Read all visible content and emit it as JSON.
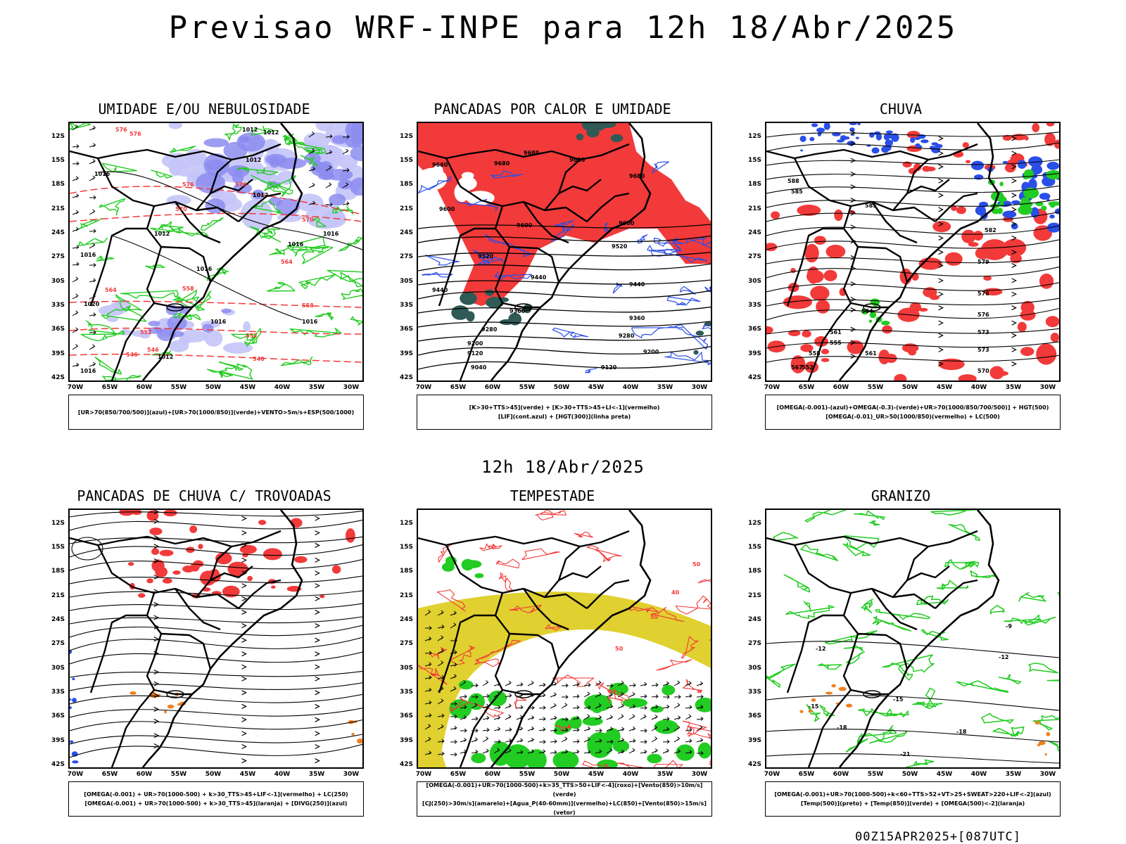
{
  "header": {
    "title": "Previsao WRF-INPE  para 12h 18/Abr/2025",
    "subtitle": "12h 18/Abr/2025",
    "footer": "00Z15APR2025+[087UTC]"
  },
  "axes": {
    "lat_labels": [
      "12S",
      "15S",
      "18S",
      "21S",
      "24S",
      "27S",
      "30S",
      "33S",
      "36S",
      "39S",
      "42S"
    ],
    "lon_labels": [
      "70W",
      "65W",
      "60W",
      "55W",
      "50W",
      "45W",
      "40W",
      "35W",
      "30W"
    ]
  },
  "colors": {
    "humid_blue": "#8c8cf0",
    "light_blue": "#c4c4f8",
    "green": "#22cc22",
    "red": "#f23a3a",
    "dark_teal": "#2f5a56",
    "contour_blue": "#2a4ee8",
    "yellow": "#e0d030",
    "orange": "#f08020"
  },
  "panels": [
    {
      "title": "UMIDADE E/OU NEBULOSIDADE",
      "legend": [
        "[UR>70(850/700/500)](azul)+[UR>70(1000/850)](verde)+VENTO>5m/s+ESP(500/1000)"
      ],
      "contour_labels": [
        "1012",
        "1012",
        "1012",
        "1012",
        "1016",
        "1012",
        "1016",
        "1016",
        "1016",
        "1016",
        "1016",
        "1016",
        "1012",
        "1016",
        "1020"
      ],
      "red_labels": [
        "576",
        "576",
        "576",
        "576",
        "570",
        "570",
        "564",
        "564",
        "558",
        "558",
        "552",
        "552",
        "546",
        "546",
        "540"
      ]
    },
    {
      "title": "PANCADAS POR CALOR E UMIDADE",
      "legend": [
        "[K>30+TTS>45](verde) + [K>30+TTS>45+LI<-1](vermelho)",
        "[LIF](cont.azul) + [HGT(300)](linha preta)"
      ],
      "contour_labels": [
        "9680",
        "9680",
        "9680",
        "9680",
        "9680",
        "9600",
        "9600",
        "9600",
        "9520",
        "9520",
        "9440",
        "9440",
        "9440",
        "9360",
        "9360",
        "9280",
        "9280",
        "9200",
        "9200",
        "9120",
        "9120",
        "9040"
      ]
    },
    {
      "title": "CHUVA",
      "legend": [
        "[OMEGA(-0.001)-(azul)+OMEGA(-0.3)-(verde)+UR>70(1000/850/700/500)] + HGT(500)",
        "[OMEGA(-0.01)_UR>50(1000/850)(vermelho) + LC(500)"
      ],
      "contour_labels": [
        "588",
        "585",
        "585",
        "582",
        "579",
        "576",
        "576",
        "573",
        "573",
        "570",
        "567",
        "564",
        "561",
        "561",
        "558",
        "555",
        "552"
      ]
    },
    {
      "title": "PANCADAS DE CHUVA C/ TROVOADAS",
      "legend": [
        "[OMEGA(-0.001) + UR>70(1000-500) + k>30_TTS>45+LIF<-1](vermelho) + LC(250)",
        "[OMEGA(-0.001) + UR>70(1000-500) + k>30_TTS>45](laranja) + [DIVG(250)](azul)"
      ]
    },
    {
      "title": "TEMPESTADE",
      "legend": [
        "[OMEGA(-0.001)+UR>70(1000-500)+k>35_TTS>50+LIF<-4](roxo)+[Vento(850)>10m/s](verde)",
        "[CJ(250)>30m/s](amarelo)+[Agua_P(40-60mm)](vermelho)+LC(850)+[Vento(850)>15m/s](vetor)"
      ],
      "contour_labels": [
        "50",
        "50",
        "40",
        "50"
      ]
    },
    {
      "title": "GRANIZO",
      "legend": [
        "[OMEGA(-0.001)+UR>70(1000-500)+k<60+TTS>52+VT>25+SWEAT>220+LIF<-2](azul)",
        "[Temp(500)](preto) + [Temp(850)](verde) + [OMEGA(500)<-2](laranja)"
      ],
      "contour_labels": [
        "-9",
        "-12",
        "-12",
        "-15",
        "-15",
        "-18",
        "-18",
        "-21"
      ]
    }
  ]
}
